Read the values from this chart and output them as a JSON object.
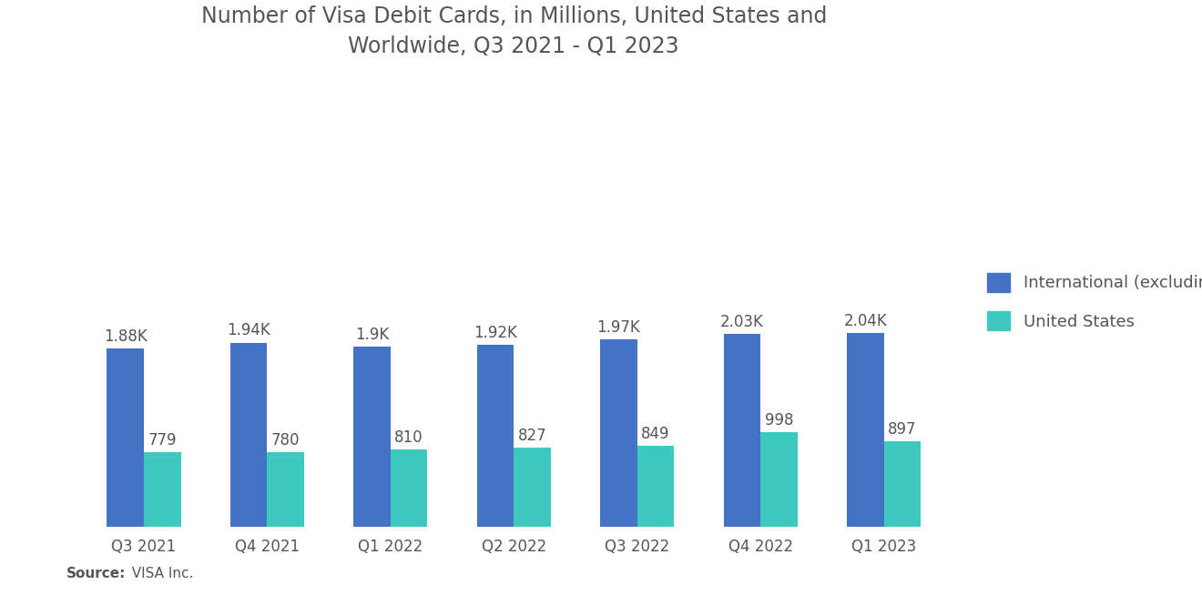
{
  "title": "Number of Visa Debit Cards, in Millions, United States and\nWorldwide, Q3 2021 - Q1 2023",
  "categories": [
    "Q3 2021",
    "Q4 2021",
    "Q1 2022",
    "Q2 2022",
    "Q3 2022",
    "Q4 2022",
    "Q1 2023"
  ],
  "international": [
    1880,
    1940,
    1900,
    1920,
    1970,
    2030,
    2040
  ],
  "us": [
    779,
    780,
    810,
    827,
    849,
    998,
    897
  ],
  "intl_labels": [
    "1.88K",
    "1.94K",
    "1.9K",
    "1.92K",
    "1.97K",
    "2.03K",
    "2.04K"
  ],
  "us_labels": [
    "779",
    "780",
    "810",
    "827",
    "849",
    "998",
    "897"
  ],
  "color_intl": "#4472C4",
  "color_us": "#3EC9C0",
  "legend_intl": "International (excluding US)",
  "legend_us": "United States",
  "source_bold": "Source:",
  "source_regular": "  VISA Inc.",
  "background_color": "#FFFFFF",
  "title_color": "#555555",
  "label_color": "#555555",
  "ylim": [
    0,
    4600
  ],
  "bar_width": 0.3,
  "title_fontsize": 17,
  "label_fontsize": 12,
  "tick_fontsize": 12,
  "legend_fontsize": 13,
  "source_fontsize": 11
}
